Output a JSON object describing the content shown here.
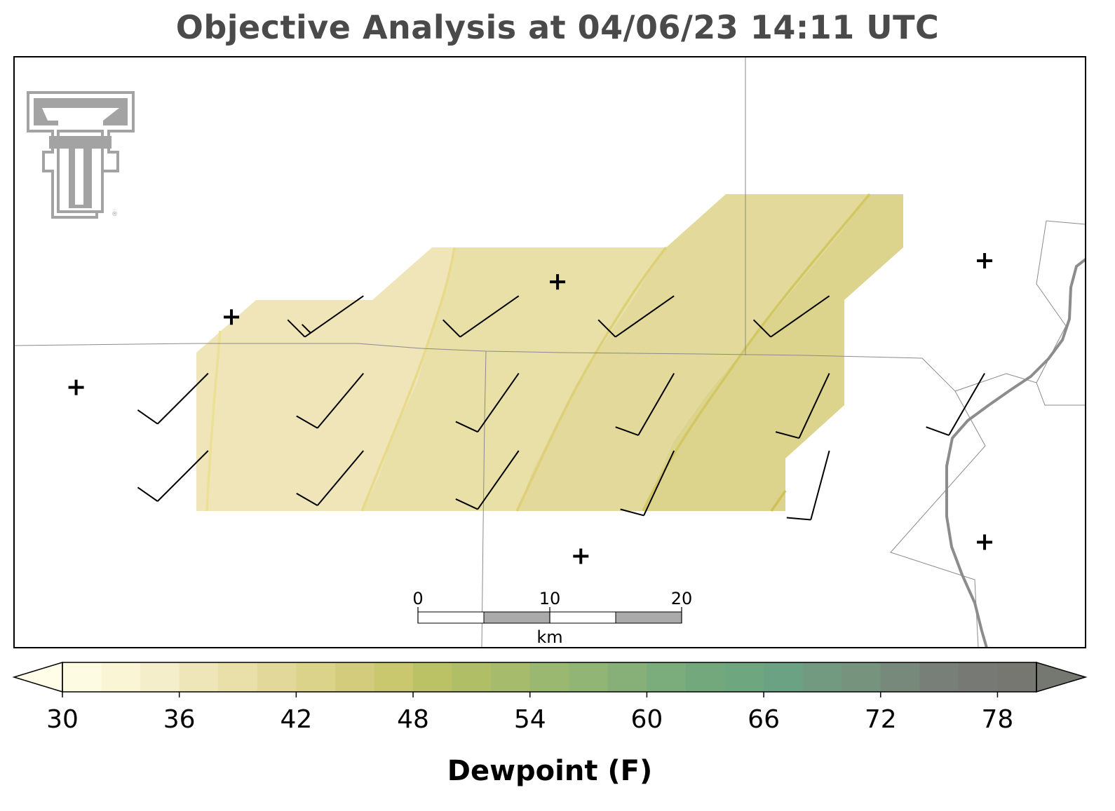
{
  "title": "Objective Analysis at 04/06/23 14:11 UTC",
  "logo": {
    "icon": "texas-tech-double-t-logo",
    "color": "#a0a0a0",
    "mark": "®"
  },
  "colorbar": {
    "label": "Dewpoint (F)",
    "min": 30,
    "max": 80,
    "step": 2,
    "ticks": [
      30,
      36,
      42,
      48,
      54,
      60,
      66,
      72,
      78
    ],
    "extend": "both",
    "colors": [
      "#fefbe3",
      "#faf5d5",
      "#f4eecb",
      "#eee5b9",
      "#e8dfa9",
      "#e2d899",
      "#dbd38a",
      "#d2cc7c",
      "#c9c86f",
      "#bbc266",
      "#b0bf66",
      "#a6bb6c",
      "#9ab870",
      "#90b574",
      "#86b078",
      "#7bac7b",
      "#73a87d",
      "#6ea680",
      "#6ba283",
      "#719a81",
      "#76937e",
      "#77897b",
      "#777f78",
      "#777a74",
      "#767771"
    ],
    "under_color": "#fffde8",
    "over_color": "#757870"
  },
  "scale_bar": {
    "ticks": [
      "0",
      "10",
      "20"
    ],
    "unit": "km"
  },
  "stations": [
    {
      "lon": -102.9,
      "lat": 33.95
    },
    {
      "lon": -102.72,
      "lat": 33.74
    },
    {
      "lon": -102.3,
      "lat": 33.79
    },
    {
      "lon": -102.92,
      "lat": 33.64
    },
    {
      "lon": -102.27,
      "lat": 33.4
    },
    {
      "lon": -101.75,
      "lat": 33.42
    },
    {
      "lon": -101.75,
      "lat": 33.82
    }
  ],
  "wind_barbs": [
    {
      "lon": -102.55,
      "lat": 33.77,
      "dir": 235,
      "speed_kt": 15
    },
    {
      "lon": -102.35,
      "lat": 33.77,
      "dir": 235,
      "speed_kt": 10
    },
    {
      "lon": -102.15,
      "lat": 33.77,
      "dir": 235,
      "speed_kt": 10
    },
    {
      "lon": -101.95,
      "lat": 33.77,
      "dir": 235,
      "speed_kt": 10
    },
    {
      "lon": -102.75,
      "lat": 33.66,
      "dir": 225,
      "speed_kt": 10
    },
    {
      "lon": -102.55,
      "lat": 33.66,
      "dir": 220,
      "speed_kt": 10
    },
    {
      "lon": -102.35,
      "lat": 33.66,
      "dir": 215,
      "speed_kt": 10
    },
    {
      "lon": -102.15,
      "lat": 33.66,
      "dir": 210,
      "speed_kt": 10
    },
    {
      "lon": -101.95,
      "lat": 33.66,
      "dir": 205,
      "speed_kt": 10
    },
    {
      "lon": -101.75,
      "lat": 33.66,
      "dir": 210,
      "speed_kt": 10
    },
    {
      "lon": -102.75,
      "lat": 33.55,
      "dir": 225,
      "speed_kt": 10
    },
    {
      "lon": -102.55,
      "lat": 33.55,
      "dir": 220,
      "speed_kt": 10
    },
    {
      "lon": -102.35,
      "lat": 33.55,
      "dir": 215,
      "speed_kt": 10
    },
    {
      "lon": -102.15,
      "lat": 33.55,
      "dir": 205,
      "speed_kt": 10
    },
    {
      "lon": -101.95,
      "lat": 33.55,
      "dir": 195,
      "speed_kt": 10
    }
  ],
  "dewpoint_field_F": {
    "min": 37,
    "max": 44,
    "trend": "increases toward the east-northeast"
  }
}
